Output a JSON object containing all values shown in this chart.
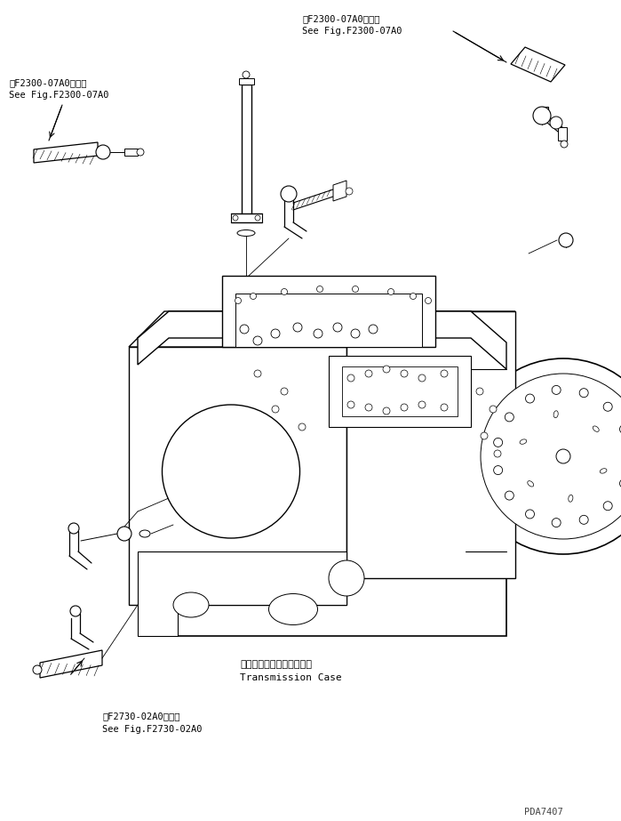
{
  "bg_color": "#ffffff",
  "line_color": "#000000",
  "text_color": "#000000",
  "title_top_right_line1": "第F2300-07A0図参照",
  "title_top_right_line2": "See Fig.F2300-07A0",
  "title_top_left_line1": "第F2300-07A0図参照",
  "title_top_left_line2": "See Fig.F2300-07A0",
  "label_transmission_jp": "トランスミッションケース",
  "label_transmission_en": "Transmission Case",
  "label_bottom_left_line1": "第F2730-02A0図参照",
  "label_bottom_left_line2": "See Fig.F2730-02A0",
  "watermark": "PDA7407",
  "fig_width": 6.99,
  "fig_height": 9.23,
  "dpi": 100
}
